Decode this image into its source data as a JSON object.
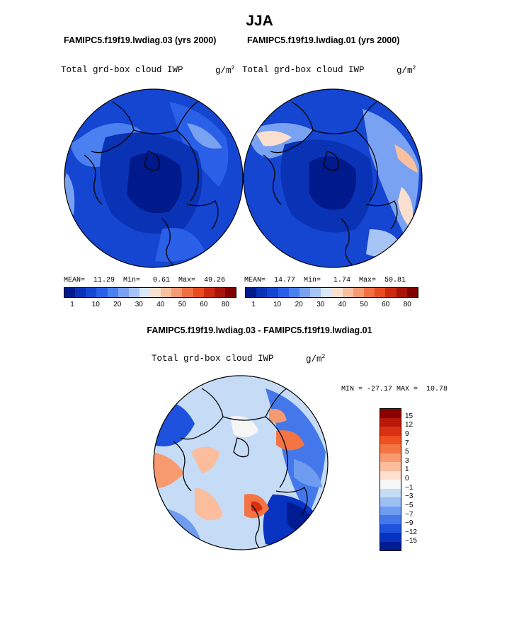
{
  "title": "JJA",
  "panel_left": {
    "case_title": "FAMIPC5.f19f19.lwdiag.03 (yrs 2000)",
    "variable": "Total grd-box cloud IWP",
    "units_base": "g/m",
    "units_exp": "2",
    "stats": "MEAN=  11.29  Min=   0.61  Max=  49.26"
  },
  "panel_right": {
    "case_title": "FAMIPC5.f19f19.lwdiag.01 (yrs 2000)",
    "variable": "Total grd-box cloud IWP",
    "units_base": "g/m",
    "units_exp": "2",
    "stats": "MEAN=  14.77  Min=   1.74  Max=  50.81"
  },
  "panel_diff": {
    "case_title": "FAMIPC5.f19f19.lwdiag.03 - FAMIPC5.f19f19.lwdiag.01",
    "variable": "Total grd-box cloud IWP",
    "units_base": "g/m",
    "units_exp": "2",
    "stats": "MIN = -27.17 MAX =  10.78"
  },
  "chart_data": [
    {
      "type": "heatmap",
      "projection": "north polar stereographic",
      "title": "FAMIPC5.f19f19.lwdiag.03 (yrs 2000)",
      "variable": "Total grd-box cloud IWP",
      "units": "g/m2",
      "mean": 11.29,
      "min": 0.61,
      "max": 49.26,
      "colorbar_ticks": [
        "1",
        "10",
        "20",
        "30",
        "40",
        "50",
        "60",
        "80"
      ],
      "colors": [
        "#001a8c",
        "#0a32b4",
        "#1446d2",
        "#2a60e8",
        "#4a80f0",
        "#7aa2f2",
        "#a6c4f6",
        "#d8e8fa",
        "#fbe0d0",
        "#f9c0a0",
        "#f59a74",
        "#f07044",
        "#e84a22",
        "#cc2a10",
        "#a81408",
        "#800000"
      ]
    },
    {
      "type": "heatmap",
      "projection": "north polar stereographic",
      "title": "FAMIPC5.f19f19.lwdiag.01 (yrs 2000)",
      "variable": "Total grd-box cloud IWP",
      "units": "g/m2",
      "mean": 14.77,
      "min": 1.74,
      "max": 50.81,
      "colorbar_ticks": [
        "1",
        "10",
        "20",
        "30",
        "40",
        "50",
        "60",
        "80"
      ],
      "colors": [
        "#001a8c",
        "#0a32b4",
        "#1446d2",
        "#2a60e8",
        "#4a80f0",
        "#7aa2f2",
        "#a6c4f6",
        "#d8e8fa",
        "#fbe0d0",
        "#f9c0a0",
        "#f59a74",
        "#f07044",
        "#e84a22",
        "#cc2a10",
        "#a81408",
        "#800000"
      ]
    },
    {
      "type": "heatmap",
      "projection": "north polar stereographic",
      "title": "FAMIPC5.f19f19.lwdiag.03 - FAMIPC5.f19f19.lwdiag.01",
      "variable": "Total grd-box cloud IWP",
      "units": "g/m2",
      "min": -27.17,
      "max": 10.78,
      "colorbar_ticks": [
        "15",
        "12",
        "9",
        "7",
        "5",
        "3",
        "1",
        "0",
        "−1",
        "−3",
        "−5",
        "−7",
        "−9",
        "−12",
        "−15"
      ],
      "colors": [
        "#8b0000",
        "#b81808",
        "#d83010",
        "#ee5020",
        "#f47444",
        "#f89a70",
        "#fbbd9c",
        "#fde0d0",
        "#f6f6f6",
        "#c6dcf6",
        "#9cc0f4",
        "#6e9cf0",
        "#4478ea",
        "#1e52de",
        "#0832c0",
        "#001c92"
      ]
    }
  ]
}
